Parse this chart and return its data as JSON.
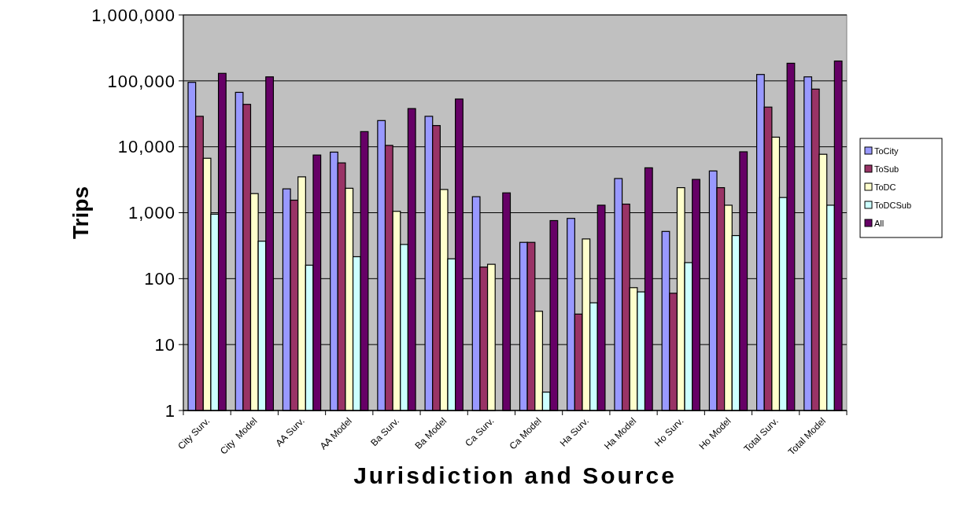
{
  "chart_data": {
    "type": "bar",
    "xlabel": "Jurisdiction and Source",
    "ylabel": "Trips",
    "categories": [
      "City Surv.",
      "City  Model",
      "AA Surv.",
      "AA Model",
      "Ba Surv.",
      "Ba Model",
      "Ca Surv.",
      "Ca Model",
      "Ha Surv.",
      "Ha Model",
      "Ho Surv.",
      "Ho Model",
      "Total Surv.",
      "Total Model"
    ],
    "series": [
      {
        "name": "ToCity",
        "color": "#9999ff",
        "values": [
          95000,
          67000,
          2300,
          8300,
          25000,
          29000,
          1750,
          355,
          820,
          3300,
          520,
          4300,
          125000,
          115000
        ]
      },
      {
        "name": "ToSub",
        "color": "#993366",
        "values": [
          29000,
          44000,
          1550,
          5700,
          10500,
          21000,
          150,
          355,
          29,
          1350,
          60,
          2400,
          40000,
          75000
        ]
      },
      {
        "name": "ToDC",
        "color": "#ffffcc",
        "values": [
          6700,
          1950,
          3500,
          2350,
          1050,
          2250,
          165,
          32,
          400,
          73,
          2400,
          1300,
          14000,
          7700
        ]
      },
      {
        "name": "ToDCSub",
        "color": "#ccffff",
        "values": [
          950,
          370,
          160,
          215,
          330,
          200,
          null,
          1.9,
          43,
          63,
          175,
          450,
          1700,
          1300
        ]
      },
      {
        "name": "All",
        "color": "#660066",
        "values": [
          130000,
          115000,
          7500,
          17000,
          38000,
          53000,
          2000,
          760,
          1300,
          4800,
          3200,
          8400,
          185000,
          200000
        ]
      }
    ],
    "log": true,
    "ylim": [
      1,
      1000000
    ],
    "yticks": [
      {
        "value": 1,
        "label": "1"
      },
      {
        "value": 10,
        "label": "10"
      },
      {
        "value": 100,
        "label": "100"
      },
      {
        "value": 1000,
        "label": "1,000"
      },
      {
        "value": 10000,
        "label": "10,000"
      },
      {
        "value": 100000,
        "label": "100,000"
      },
      {
        "value": 1000000,
        "label": "1,000,000"
      }
    ],
    "grid": "y",
    "legend": "right"
  }
}
